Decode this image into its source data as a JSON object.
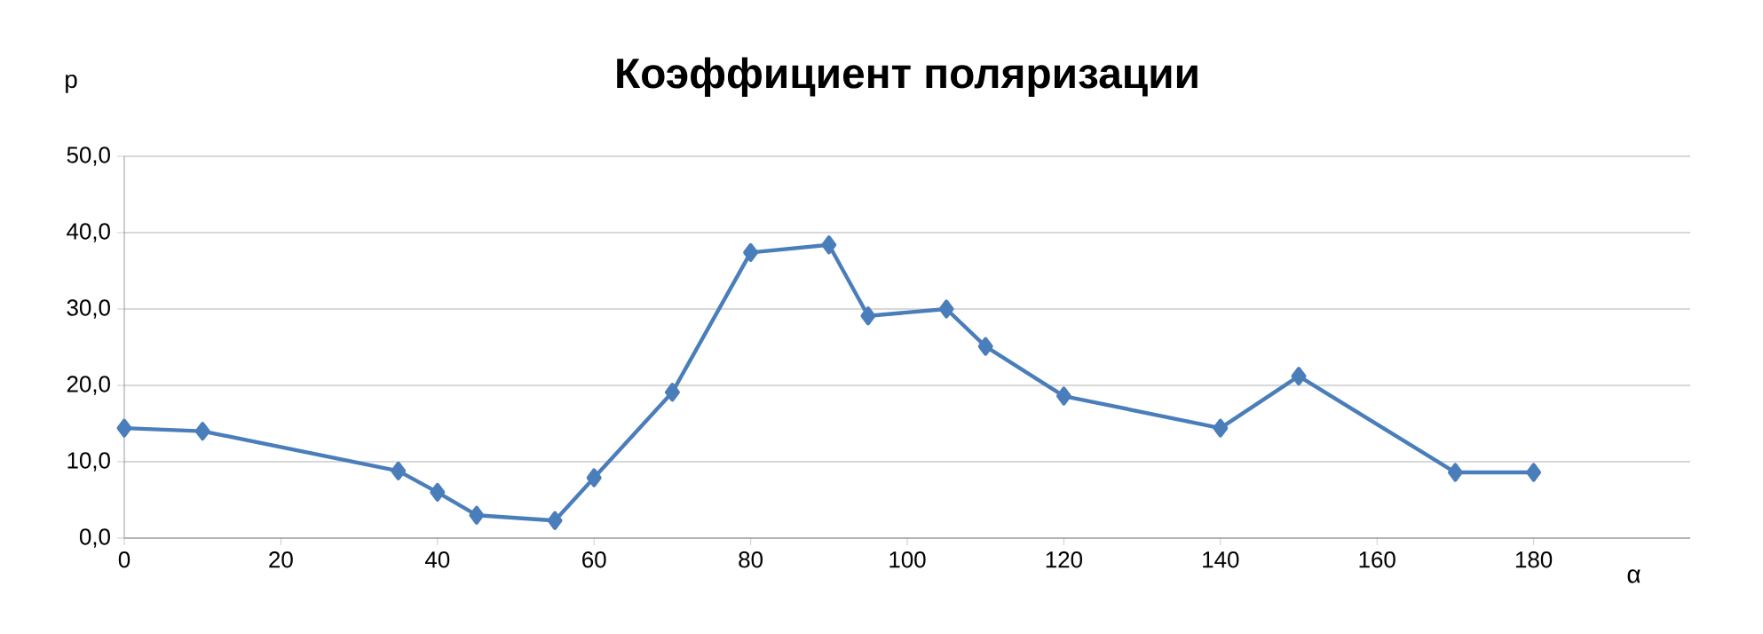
{
  "chart_data": {
    "type": "line",
    "title": "Коэффициент поляризации",
    "xlabel": "α",
    "ylabel": "p",
    "x": [
      0,
      10,
      35,
      40,
      45,
      55,
      60,
      70,
      80,
      90,
      95,
      105,
      110,
      120,
      140,
      150,
      170,
      180
    ],
    "series": [
      {
        "color": "#4a7ebb",
        "values": [
          14.4,
          14.0,
          8.8,
          6.0,
          3.0,
          2.3,
          7.9,
          19.1,
          37.4,
          38.4,
          29.1,
          30.0,
          25.1,
          18.6,
          14.4,
          21.2,
          8.6,
          8.6
        ]
      }
    ],
    "xlim": [
      0,
      200
    ],
    "xticks": [
      0,
      20,
      40,
      60,
      80,
      100,
      120,
      140,
      160,
      180
    ],
    "ylim": [
      0,
      50
    ],
    "yticks": [
      {
        "value": 0,
        "label": "0,0"
      },
      {
        "value": 10,
        "label": "10,0"
      },
      {
        "value": 20,
        "label": "20,0"
      },
      {
        "value": 30,
        "label": "30,0"
      },
      {
        "value": 40,
        "label": "40,0"
      },
      {
        "value": 50,
        "label": "50,0"
      }
    ],
    "grid": "y",
    "marker": "diamond",
    "line_style": "solid"
  }
}
